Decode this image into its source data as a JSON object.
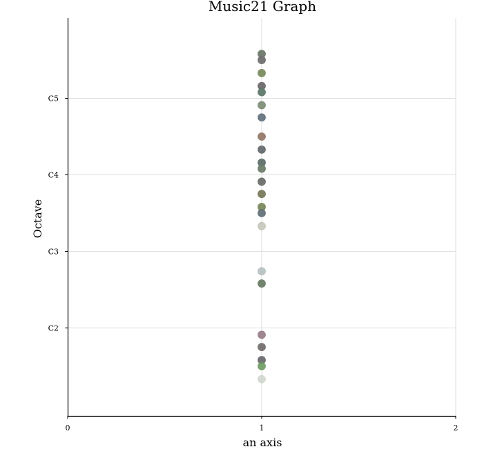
{
  "chart_data": {
    "type": "scatter",
    "title": "Music21 Graph",
    "xlabel": "an axis",
    "ylabel": "Octave",
    "xlim": [
      0,
      2
    ],
    "ylim": [
      0.85,
      6.05
    ],
    "grid": true,
    "x_ticks": [
      {
        "value": 0,
        "label": "0"
      },
      {
        "value": 1,
        "label": "1"
      },
      {
        "value": 2,
        "label": "2"
      }
    ],
    "y_ticks": [
      {
        "value": 2,
        "label": "C2"
      },
      {
        "value": 3,
        "label": "C3"
      },
      {
        "value": 4,
        "label": "C4"
      },
      {
        "value": 5,
        "label": "C5"
      }
    ],
    "points": [
      {
        "x": 1,
        "y": 5.58,
        "color": "#6e7a6c",
        "opacity": 0.95
      },
      {
        "x": 1,
        "y": 5.5,
        "color": "#6f706f",
        "opacity": 0.95
      },
      {
        "x": 1,
        "y": 5.33,
        "color": "#7a8c5e",
        "opacity": 0.95
      },
      {
        "x": 1,
        "y": 5.16,
        "color": "#6e6a6a",
        "opacity": 0.95
      },
      {
        "x": 1,
        "y": 5.08,
        "color": "#5e7a6a",
        "opacity": 0.95
      },
      {
        "x": 1,
        "y": 4.91,
        "color": "#7a8a72",
        "opacity": 0.9
      },
      {
        "x": 1,
        "y": 4.75,
        "color": "#667580",
        "opacity": 0.95
      },
      {
        "x": 1,
        "y": 4.5,
        "color": "#957a6a",
        "opacity": 0.95
      },
      {
        "x": 1,
        "y": 4.33,
        "color": "#666d70",
        "opacity": 0.95
      },
      {
        "x": 1,
        "y": 4.16,
        "color": "#5f706c",
        "opacity": 0.95
      },
      {
        "x": 1,
        "y": 4.08,
        "color": "#6d7e6a",
        "opacity": 0.95
      },
      {
        "x": 1,
        "y": 3.91,
        "color": "#6c6e6c",
        "opacity": 0.95
      },
      {
        "x": 1,
        "y": 3.75,
        "color": "#7a7a5c",
        "opacity": 0.95
      },
      {
        "x": 1,
        "y": 3.58,
        "color": "#7a8a5c",
        "opacity": 0.95
      },
      {
        "x": 1,
        "y": 3.5,
        "color": "#65737a",
        "opacity": 0.95
      },
      {
        "x": 1,
        "y": 3.33,
        "color": "#b5b8a8",
        "opacity": 0.7
      },
      {
        "x": 1,
        "y": 2.74,
        "color": "#a8b4b4",
        "opacity": 0.75
      },
      {
        "x": 1,
        "y": 2.58,
        "color": "#6c7e68",
        "opacity": 0.95
      },
      {
        "x": 1,
        "y": 1.91,
        "color": "#957a85",
        "opacity": 0.9
      },
      {
        "x": 1,
        "y": 1.75,
        "color": "#757070",
        "opacity": 0.95
      },
      {
        "x": 1,
        "y": 1.58,
        "color": "#6e6c70",
        "opacity": 0.95
      },
      {
        "x": 1,
        "y": 1.5,
        "color": "#6c9a60",
        "opacity": 0.9
      },
      {
        "x": 1,
        "y": 1.33,
        "color": "#c8d0c4",
        "opacity": 0.75
      }
    ]
  }
}
